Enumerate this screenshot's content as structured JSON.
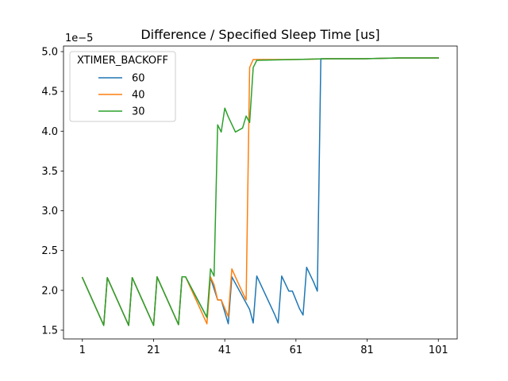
{
  "chart_data": {
    "type": "line",
    "title": "Difference / Specified Sleep Time [us]",
    "xlabel": "",
    "ylabel": "",
    "offset_text": "1e−5",
    "xlim": [
      -4.3,
      106.3
    ],
    "ylim": [
      1.39,
      5.07
    ],
    "x_ticks": [
      1,
      21,
      41,
      61,
      81,
      101
    ],
    "y_ticks": [
      1.5,
      2.0,
      2.5,
      3.0,
      3.5,
      4.0,
      4.5,
      5.0
    ],
    "y_tick_labels": [
      "1.5",
      "2.0",
      "2.5",
      "3.0",
      "3.5",
      "4.0",
      "4.5",
      "5.0"
    ],
    "grid": false,
    "legend": {
      "title": "XTIMER_BACKOFF",
      "placement": "upper-left"
    },
    "series": [
      {
        "name": "60",
        "color": "#1f77b4",
        "points": [
          [
            1,
            2.16
          ],
          [
            7,
            1.56
          ],
          [
            8,
            2.16
          ],
          [
            14,
            1.56
          ],
          [
            15,
            2.16
          ],
          [
            21,
            1.56
          ],
          [
            22,
            2.17
          ],
          [
            28,
            1.57
          ],
          [
            29,
            2.17
          ],
          [
            30,
            2.17
          ],
          [
            36,
            1.66
          ],
          [
            37,
            2.16
          ],
          [
            39,
            1.88
          ],
          [
            40,
            1.88
          ],
          [
            42,
            1.58
          ],
          [
            43,
            2.17
          ],
          [
            48,
            1.76
          ],
          [
            49,
            1.59
          ],
          [
            50,
            2.18
          ],
          [
            55,
            1.7
          ],
          [
            56,
            1.59
          ],
          [
            57,
            2.18
          ],
          [
            59,
            1.99
          ],
          [
            60,
            1.99
          ],
          [
            62,
            1.77
          ],
          [
            63,
            1.69
          ],
          [
            64,
            2.29
          ],
          [
            66,
            2.1
          ],
          [
            67,
            1.99
          ],
          [
            68,
            4.91
          ],
          [
            70,
            4.91
          ],
          [
            80,
            4.91
          ],
          [
            90,
            4.92
          ],
          [
            101,
            4.92
          ]
        ]
      },
      {
        "name": "40",
        "color": "#ff7f0e",
        "points": [
          [
            1,
            2.16
          ],
          [
            7,
            1.56
          ],
          [
            8,
            2.16
          ],
          [
            14,
            1.56
          ],
          [
            15,
            2.16
          ],
          [
            21,
            1.56
          ],
          [
            22,
            2.17
          ],
          [
            28,
            1.57
          ],
          [
            29,
            2.17
          ],
          [
            30,
            2.17
          ],
          [
            36,
            1.58
          ],
          [
            37,
            2.17
          ],
          [
            38,
            2.07
          ],
          [
            39,
            1.88
          ],
          [
            40,
            1.88
          ],
          [
            42,
            1.67
          ],
          [
            43,
            2.27
          ],
          [
            45,
            2.07
          ],
          [
            47,
            1.88
          ],
          [
            48,
            4.8
          ],
          [
            49,
            4.9
          ],
          [
            60,
            4.9
          ],
          [
            70,
            4.91
          ],
          [
            80,
            4.91
          ],
          [
            90,
            4.92
          ],
          [
            101,
            4.92
          ]
        ]
      },
      {
        "name": "30",
        "color": "#2ca02c",
        "points": [
          [
            1,
            2.16
          ],
          [
            7,
            1.56
          ],
          [
            8,
            2.16
          ],
          [
            14,
            1.56
          ],
          [
            15,
            2.16
          ],
          [
            21,
            1.56
          ],
          [
            22,
            2.17
          ],
          [
            28,
            1.57
          ],
          [
            29,
            2.17
          ],
          [
            30,
            2.17
          ],
          [
            36,
            1.66
          ],
          [
            37,
            2.27
          ],
          [
            38,
            2.18
          ],
          [
            39,
            4.08
          ],
          [
            40,
            3.99
          ],
          [
            41,
            4.29
          ],
          [
            42,
            4.18
          ],
          [
            44,
            3.99
          ],
          [
            46,
            4.04
          ],
          [
            47,
            4.19
          ],
          [
            48,
            4.11
          ],
          [
            49,
            4.8
          ],
          [
            50,
            4.89
          ],
          [
            60,
            4.9
          ],
          [
            70,
            4.91
          ],
          [
            80,
            4.91
          ],
          [
            90,
            4.92
          ],
          [
            101,
            4.92
          ]
        ]
      }
    ]
  }
}
